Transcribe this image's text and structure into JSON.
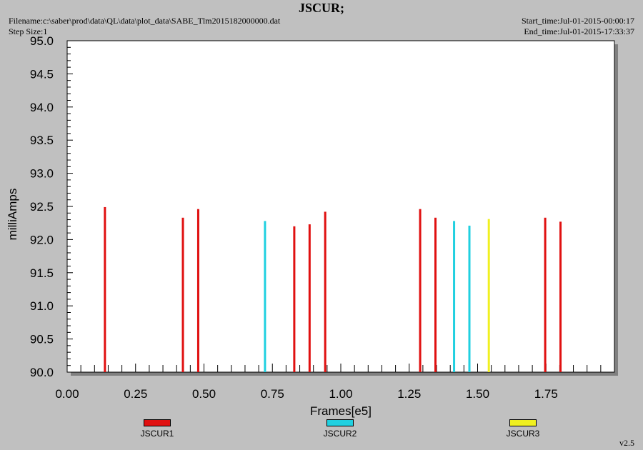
{
  "header": {
    "title": "JSCUR;",
    "filename": "Filename:c:\\saber\\prod\\data\\QL\\data\\plot_data\\SABE_Tlm2015182000000.dat",
    "step_size": "Step Size:1",
    "start_time": "Start_time:Jul-01-2015-00:00:17",
    "end_time": "End_time:Jul-01-2015-17:33:37"
  },
  "version": "v2.5",
  "colors": {
    "background": "#c0c0c0",
    "plot_area": "#ffffff",
    "shadow": "#808080",
    "JSCUR1": "#e01010",
    "JSCUR2": "#20d0e0",
    "JSCUR3": "#f0f020"
  },
  "chart_data": {
    "type": "bar",
    "title": "JSCUR;",
    "xlabel": "Frames[e5]",
    "ylabel": "milliAmps",
    "xlim": [
      0.0,
      2.0
    ],
    "ylim": [
      90.0,
      95.0
    ],
    "x_ticks": [
      "0.00",
      "0.25",
      "0.50",
      "0.75",
      "1.00",
      "1.25",
      "1.50",
      "1.75"
    ],
    "y_ticks": [
      "90.0",
      "90.5",
      "91.0",
      "91.5",
      "92.0",
      "92.5",
      "93.0",
      "93.5",
      "94.0",
      "94.5",
      "95.0"
    ],
    "grid": false,
    "legend_position": "bottom",
    "series": [
      {
        "name": "JSCUR1",
        "points": [
          {
            "x": 0.138,
            "y": 92.49
          },
          {
            "x": 0.423,
            "y": 92.33
          },
          {
            "x": 0.479,
            "y": 92.46
          },
          {
            "x": 0.83,
            "y": 92.2
          },
          {
            "x": 0.886,
            "y": 92.23
          },
          {
            "x": 0.943,
            "y": 92.42
          },
          {
            "x": 1.29,
            "y": 92.46
          },
          {
            "x": 1.346,
            "y": 92.33
          },
          {
            "x": 1.747,
            "y": 92.33
          },
          {
            "x": 1.803,
            "y": 92.27
          }
        ]
      },
      {
        "name": "JSCUR2",
        "points": [
          {
            "x": 0.723,
            "y": 92.28
          },
          {
            "x": 1.414,
            "y": 92.28
          },
          {
            "x": 1.47,
            "y": 92.21
          }
        ]
      },
      {
        "name": "JSCUR3",
        "points": [
          {
            "x": 1.541,
            "y": 92.31
          }
        ]
      }
    ]
  }
}
